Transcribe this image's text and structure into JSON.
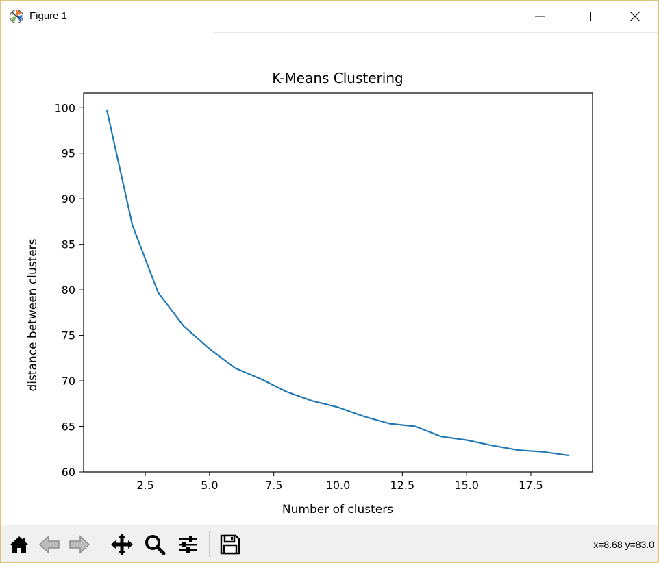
{
  "window": {
    "title": "Figure 1",
    "icons": {
      "app": "matplotlib-logo-icon",
      "minimize": "minimize-icon",
      "maximize": "maximize-icon",
      "close": "close-icon"
    }
  },
  "toolbar": {
    "buttons": [
      {
        "name": "home",
        "icon": "home-icon"
      },
      {
        "name": "back",
        "icon": "arrow-left-icon"
      },
      {
        "name": "forward",
        "icon": "arrow-right-icon"
      },
      {
        "name": "pan",
        "icon": "move-icon"
      },
      {
        "name": "zoom",
        "icon": "magnifier-icon"
      },
      {
        "name": "configure-subplots",
        "icon": "sliders-icon"
      },
      {
        "name": "save",
        "icon": "floppy-disk-icon"
      }
    ],
    "coordinates": "x=8.68 y=83.0"
  },
  "chart_data": {
    "type": "line",
    "title": "K-Means Clustering",
    "xlabel": "Number of clusters",
    "ylabel": "distance between clusters",
    "xlim": [
      0.1,
      19.9
    ],
    "ylim": [
      60,
      101.6
    ],
    "xticks": [
      2.5,
      5.0,
      7.5,
      10.0,
      12.5,
      15.0,
      17.5
    ],
    "xtick_labels": [
      "2.5",
      "5.0",
      "7.5",
      "10.0",
      "12.5",
      "15.0",
      "17.5"
    ],
    "yticks": [
      60,
      65,
      70,
      75,
      80,
      85,
      90,
      95,
      100
    ],
    "ytick_labels": [
      "60",
      "65",
      "70",
      "75",
      "80",
      "85",
      "90",
      "95",
      "100"
    ],
    "grid": false,
    "series": [
      {
        "color": "#1f77b4",
        "x": [
          1,
          2,
          3,
          4,
          5,
          6,
          7,
          8,
          9,
          10,
          11,
          12,
          13,
          14,
          15,
          16,
          17,
          18,
          19
        ],
        "y": [
          99.8,
          87.1,
          79.7,
          76.0,
          73.5,
          71.4,
          70.2,
          68.8,
          67.8,
          67.1,
          66.1,
          65.3,
          65.0,
          63.9,
          63.5,
          62.9,
          62.4,
          62.2,
          61.8
        ]
      }
    ]
  }
}
